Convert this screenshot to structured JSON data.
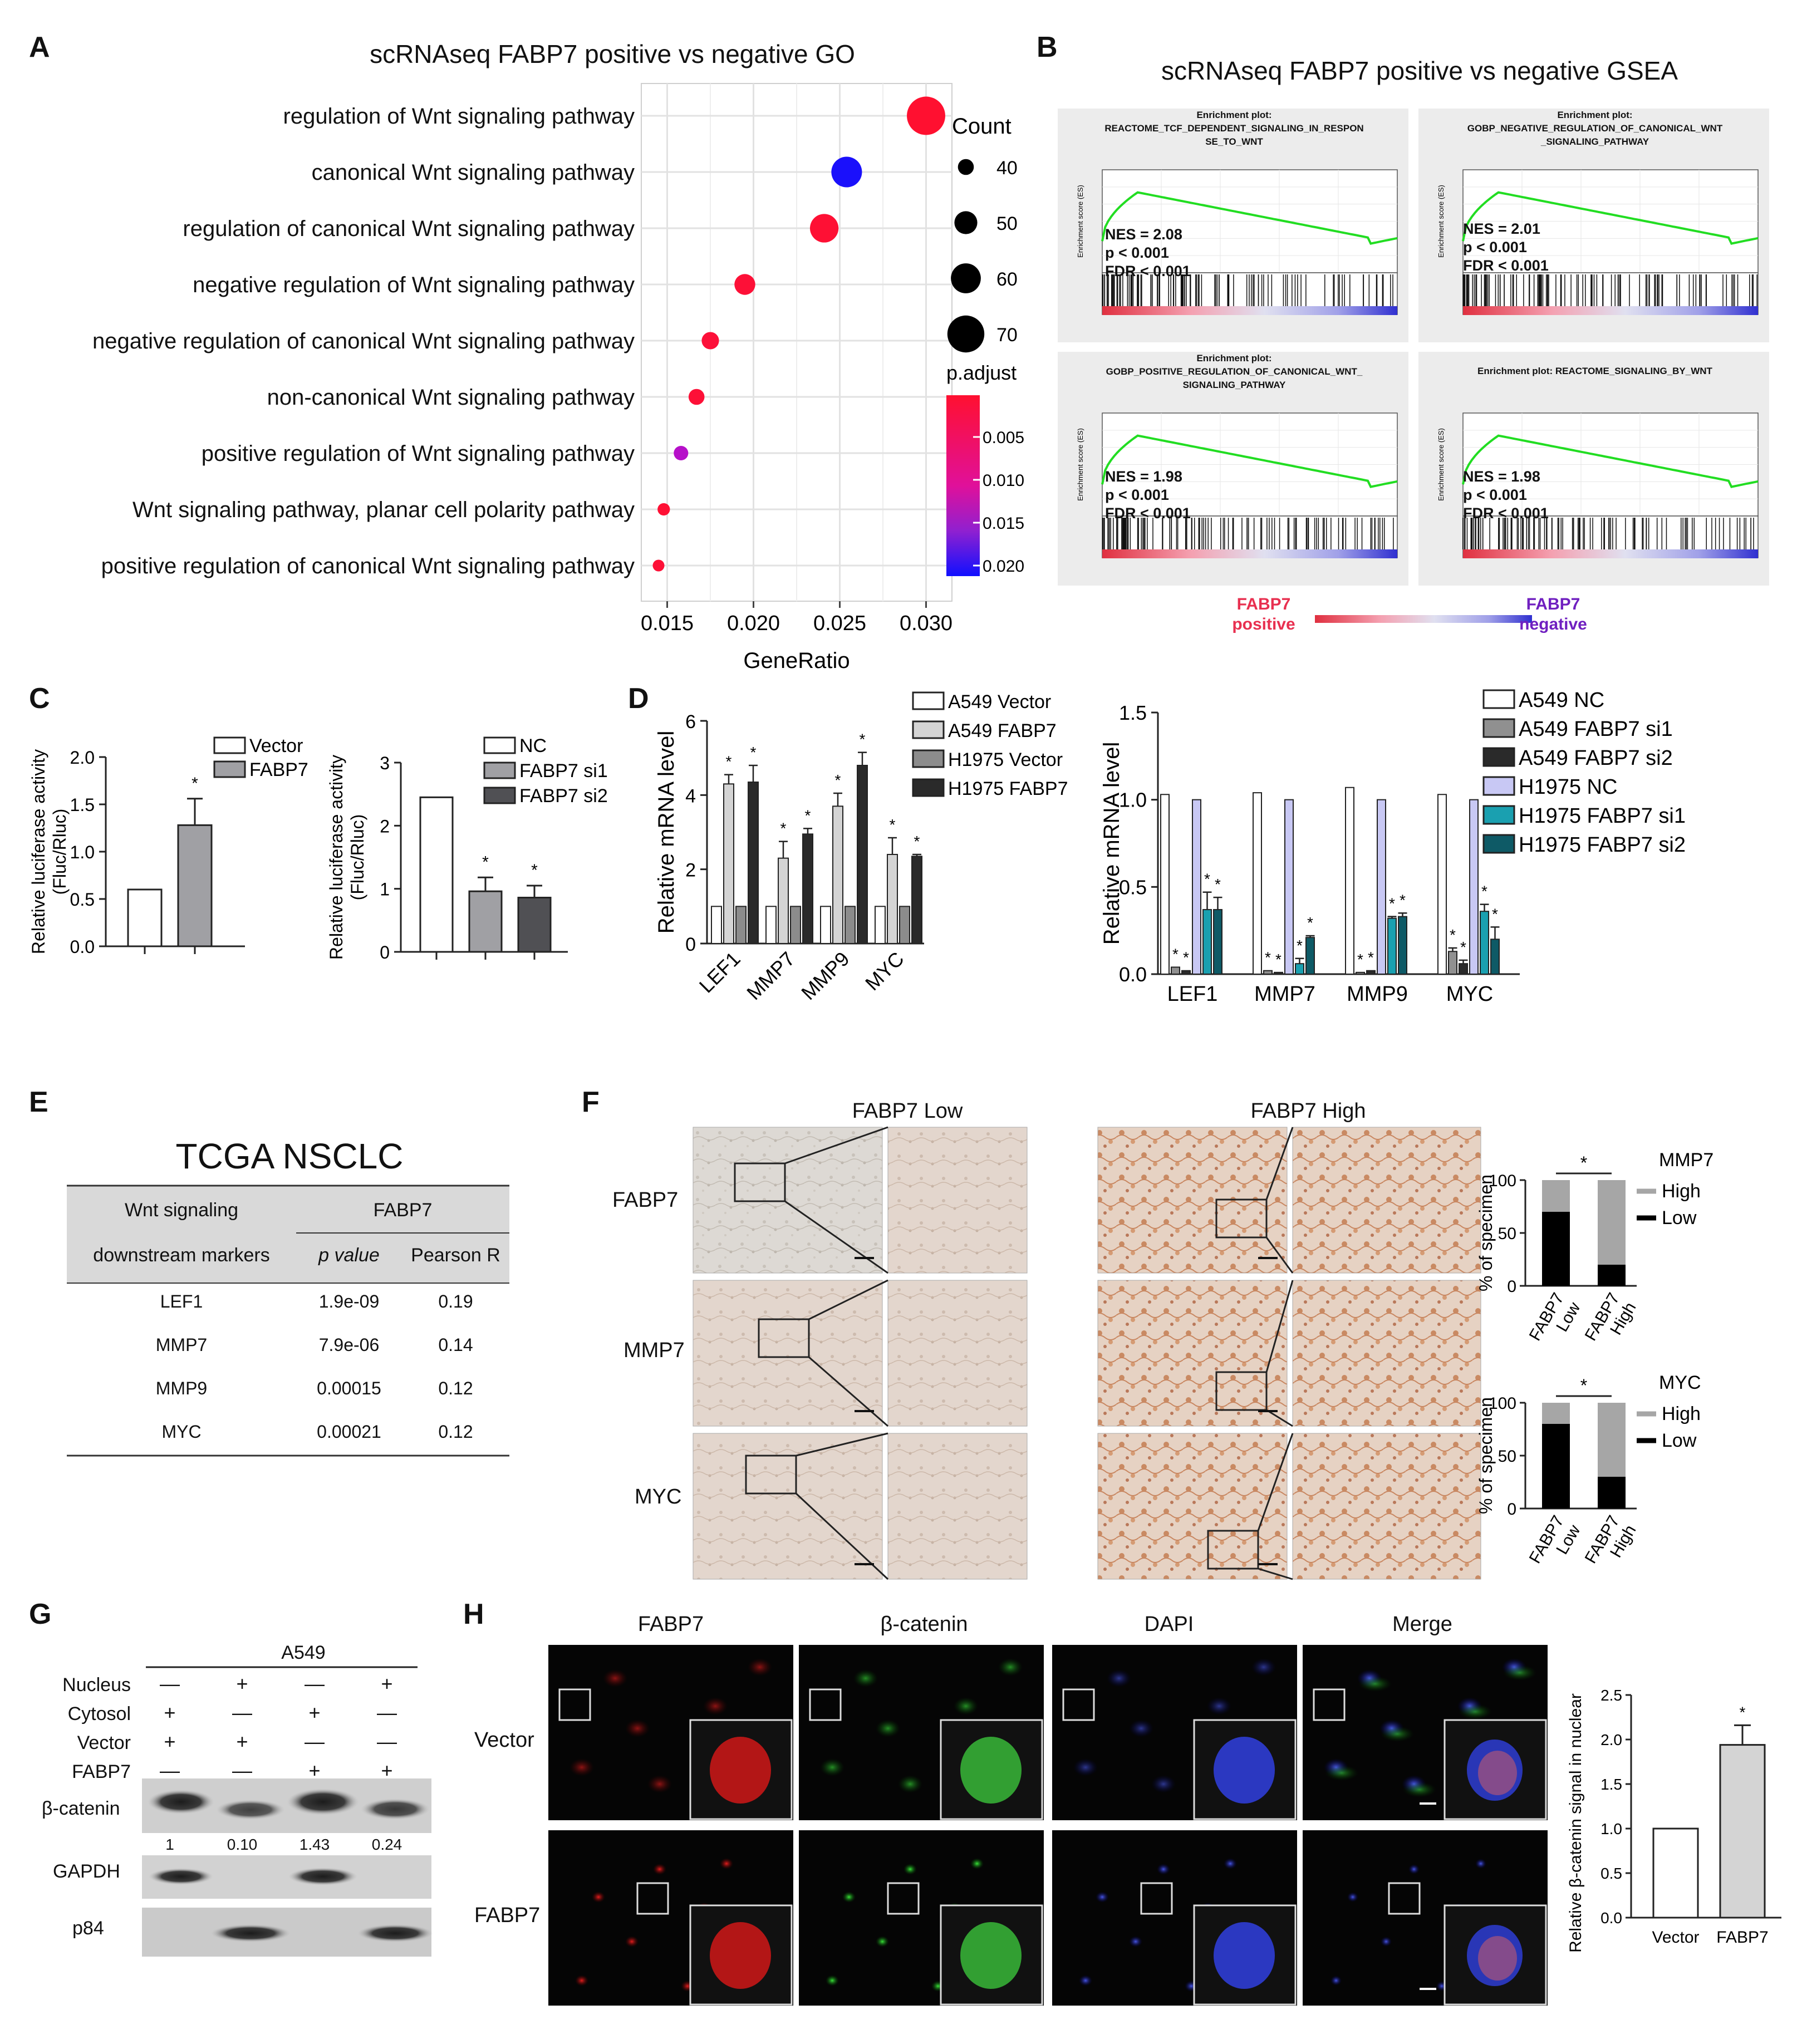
{
  "panels": {
    "A": "A",
    "B": "B",
    "C": "C",
    "D": "D",
    "E": "E",
    "F": "F",
    "G": "G",
    "H": "H"
  },
  "panel_a": {
    "title": "scRNAseq  FABP7 positive vs negative GO",
    "terms": [
      "regulation of Wnt signaling pathway",
      "canonical Wnt signaling pathway",
      "regulation of canonical Wnt signaling pathway",
      "negative regulation of Wnt signaling pathway",
      "negative regulation of canonical Wnt signaling pathway",
      "non-canonical Wnt signaling pathway",
      "positive regulation of Wnt signaling pathway",
      "Wnt signaling pathway, planar cell polarity pathway",
      "positive regulation of canonical Wnt signaling pathway"
    ],
    "count_title": "Count",
    "count_values": [
      "40",
      "50",
      "60",
      "70"
    ],
    "padj_title": "p.adjust",
    "padj_ticks": [
      "0.005",
      "0.010",
      "0.015",
      "0.020"
    ],
    "colors": {
      "high": "#ff1030",
      "mid": "#a020c0",
      "low": "#1010ff"
    }
  },
  "chart_data": [
    {
      "type": "scatter",
      "id": "A-GO-dotplot",
      "title": "scRNAseq  FABP7 positive vs negative GO",
      "xlabel": "GeneRatio",
      "xticks": [
        "0.015",
        "0.020",
        "0.025",
        "0.030"
      ],
      "xlim": [
        0.0135,
        0.0315
      ],
      "categories": [
        "regulation of Wnt signaling pathway",
        "canonical Wnt signaling pathway",
        "regulation of canonical Wnt signaling pathway",
        "negative regulation of Wnt signaling pathway",
        "negative regulation of canonical Wnt signaling pathway",
        "non-canonical Wnt signaling pathway",
        "positive regulation of Wnt signaling pathway",
        "Wnt signaling pathway, planar cell polarity pathway",
        "positive regulation of canonical Wnt signaling pathway"
      ],
      "gene_ratio": [
        0.03,
        0.0254,
        0.0241,
        0.0195,
        0.0175,
        0.0167,
        0.0158,
        0.0148,
        0.0145
      ],
      "count": [
        72,
        61,
        58,
        47,
        42,
        40,
        38,
        35,
        34
      ],
      "p_adjust": [
        0.0005,
        0.02,
        0.0008,
        0.001,
        0.0012,
        0.001,
        0.0125,
        0.0008,
        0.001
      ]
    },
    {
      "type": "bar",
      "id": "C-left",
      "ylabel": "Relative luciferase activity\n(Fluc/Rluc)",
      "ylim": [
        0,
        2.0
      ],
      "yticks": [
        "0.0",
        "0.5",
        "1.0",
        "1.5",
        "2.0"
      ],
      "categories": [
        "Vector",
        "FABP7"
      ],
      "values": [
        0.6,
        1.28
      ],
      "errors": [
        0,
        0.28
      ],
      "significance": [
        "",
        "*"
      ],
      "legend": [
        "Vector",
        "FABP7"
      ]
    },
    {
      "type": "bar",
      "id": "C-right",
      "ylabel": "Relative luciferase activity\n(Fluc/Rluc)",
      "ylim": [
        0,
        3
      ],
      "yticks": [
        "0",
        "1",
        "2",
        "3"
      ],
      "categories": [
        "NC",
        "FABP7 si1",
        "FABP7 si2"
      ],
      "values": [
        2.45,
        0.96,
        0.86
      ],
      "errors": [
        0,
        0.22,
        0.19
      ],
      "significance": [
        "",
        "*",
        "*"
      ],
      "legend": [
        "NC",
        "FABP7 si1",
        "FABP7 si2"
      ]
    },
    {
      "type": "bar",
      "id": "D-left",
      "ylabel": "Relative mRNA level",
      "ylim": [
        0,
        6
      ],
      "yticks": [
        "0",
        "2",
        "4",
        "6"
      ],
      "categories": [
        "LEF1",
        "MMP7",
        "MMP9",
        "MYC"
      ],
      "series": [
        {
          "name": "A549 Vector",
          "values": [
            1,
            1,
            1,
            1
          ],
          "errors": [
            0,
            0,
            0,
            0
          ]
        },
        {
          "name": "A549 FABP7",
          "values": [
            4.3,
            2.3,
            3.7,
            2.4
          ],
          "errors": [
            0.25,
            0.45,
            0.35,
            0.45
          ]
        },
        {
          "name": "H1975 Vector",
          "values": [
            1,
            1,
            1,
            1
          ],
          "errors": [
            0,
            0,
            0,
            0
          ]
        },
        {
          "name": "H1975 FABP7",
          "values": [
            4.35,
            2.95,
            4.8,
            2.35
          ],
          "errors": [
            0.45,
            0.15,
            0.35,
            0.05
          ]
        }
      ]
    },
    {
      "type": "bar",
      "id": "D-right",
      "ylabel": "Relative mRNA level",
      "ylim": [
        0,
        1.5
      ],
      "yticks": [
        "0.0",
        "0.5",
        "1.0",
        "1.5"
      ],
      "categories": [
        "LEF1",
        "MMP7",
        "MMP9",
        "MYC"
      ],
      "series": [
        {
          "name": "A549 NC",
          "values": [
            1.03,
            1.04,
            1.07,
            1.03
          ],
          "errors": [
            0,
            0,
            0,
            0
          ]
        },
        {
          "name": "A549 FABP7 si1",
          "values": [
            0.04,
            0.02,
            0.01,
            0.13
          ],
          "errors": [
            0,
            0,
            0,
            0.02
          ]
        },
        {
          "name": "A549 FABP7 si2",
          "values": [
            0.02,
            0.01,
            0.02,
            0.06
          ],
          "errors": [
            0,
            0,
            0,
            0.02
          ]
        },
        {
          "name": "H1975 NC",
          "values": [
            1.0,
            1.0,
            1.0,
            1.0
          ],
          "errors": [
            0,
            0,
            0,
            0
          ]
        },
        {
          "name": "H1975 FABP7 si1",
          "values": [
            0.37,
            0.06,
            0.32,
            0.36
          ],
          "errors": [
            0.1,
            0.03,
            0.01,
            0.04
          ]
        },
        {
          "name": "H1975 FABP7 si2",
          "values": [
            0.37,
            0.21,
            0.33,
            0.2
          ],
          "errors": [
            0.07,
            0.01,
            0.02,
            0.07
          ]
        }
      ]
    },
    {
      "type": "bar",
      "id": "F-MMP7",
      "ylabel": "% of specimen",
      "ylim": [
        0,
        100
      ],
      "yticks": [
        "0",
        "50",
        "100"
      ],
      "categories": [
        "FABP7 Low",
        "FABP7 High"
      ],
      "series": [
        {
          "name": "Low",
          "values": [
            70,
            20
          ]
        },
        {
          "name": "High",
          "values": [
            30,
            80
          ]
        }
      ],
      "legend_title": "MMP7"
    },
    {
      "type": "bar",
      "id": "F-MYC",
      "ylabel": "% of specimen",
      "ylim": [
        0,
        100
      ],
      "yticks": [
        "0",
        "50",
        "100"
      ],
      "categories": [
        "FABP7 Low",
        "FABP7 High"
      ],
      "series": [
        {
          "name": "Low",
          "values": [
            80,
            30
          ]
        },
        {
          "name": "High",
          "values": [
            20,
            70
          ]
        }
      ],
      "legend_title": "MYC"
    },
    {
      "type": "bar",
      "id": "H-right",
      "ylabel": "Relative β-catenin signal in nuclear",
      "ylim": [
        0,
        2.5
      ],
      "yticks": [
        "0.0",
        "0.5",
        "1.0",
        "1.5",
        "2.0",
        "2.5"
      ],
      "categories": [
        "Vector",
        "FABP7"
      ],
      "values": [
        1.0,
        1.94
      ],
      "errors": [
        0,
        0.22
      ],
      "significance": [
        "",
        "*"
      ]
    }
  ],
  "panel_b": {
    "title": "scRNAseq  FABP7 positive vs negative GSEA",
    "plots": [
      {
        "title": "Enrichment plot:\nREACTOME_TCF_DEPENDENT_SIGNALING_IN_RESPON\nSE_TO_WNT",
        "stats": "NES = 2.08\np < 0.001\nFDR < 0.001"
      },
      {
        "title": "Enrichment plot:\nGOBP_NEGATIVE_REGULATION_OF_CANONICAL_WNT\n_SIGNALING_PATHWAY",
        "stats": "NES = 2.01\np < 0.001\nFDR < 0.001"
      },
      {
        "title": "Enrichment plot:\nGOBP_POSITIVE_REGULATION_OF_CANONICAL_WNT_\nSIGNALING_PATHWAY",
        "stats": "NES = 1.98\np < 0.001\nFDR < 0.001"
      },
      {
        "title": "Enrichment plot: REACTOME_SIGNALING_BY_WNT",
        "stats": "NES = 1.98\np < 0.001\nFDR < 0.001"
      }
    ],
    "ylabel": "Enrichment score (ES)",
    "pos_label": "FABP7\npositive",
    "neg_label": "FABP7\nnegative"
  },
  "panel_c": {
    "left_legend": [
      "Vector",
      "FABP7"
    ],
    "right_legend": [
      "NC",
      "FABP7 si1",
      "FABP7 si2"
    ],
    "ylabel1": "Relative luciferase activity",
    "ylabel2": "(Fluc/Rluc)"
  },
  "panel_d": {
    "left_legend": [
      "A549 Vector",
      "A549 FABP7",
      "H1975 Vector",
      "H1975 FABP7"
    ],
    "right_legend": [
      "A549 NC",
      "A549 FABP7 si1",
      "A549 FABP7 si2",
      "H1975 NC",
      "H1975 FABP7 si1",
      "H1975 FABP7 si2"
    ]
  },
  "panel_e": {
    "title": "TCGA NSCLC",
    "head1": "Wnt signaling",
    "head2": "downstream markers",
    "group": "FABP7",
    "col_p": "p value",
    "col_r": "Pearson  R",
    "rows": [
      {
        "gene": "LEF1",
        "p": "1.9e-09",
        "r": "0.19"
      },
      {
        "gene": "MMP7",
        "p": "7.9e-06",
        "r": "0.14"
      },
      {
        "gene": "MMP9",
        "p": "0.00015",
        "r": "0.12"
      },
      {
        "gene": "MYC",
        "p": "0.00021",
        "r": "0.12"
      }
    ]
  },
  "panel_f": {
    "col_low": "FABP7 Low",
    "col_high": "FABP7 High",
    "rows": [
      "FABP7",
      "MMP7",
      "MYC"
    ],
    "legend_high": "High",
    "legend_low": "Low",
    "sig": "*"
  },
  "panel_g": {
    "cell": "A549",
    "cond_labels": [
      "Nucleus",
      "Cytosol",
      "Vector",
      "FABP7"
    ],
    "cond_signs": [
      [
        "—",
        "+",
        "—",
        "+"
      ],
      [
        "+",
        "—",
        "+",
        "—"
      ],
      [
        "+",
        "+",
        "—",
        "—"
      ],
      [
        "—",
        "—",
        "+",
        "+"
      ]
    ],
    "blots": [
      "β-catenin",
      "GAPDH",
      "p84"
    ],
    "quant": [
      "1",
      "0.10",
      "1.43",
      "0.24"
    ]
  },
  "panel_h": {
    "cols": [
      "FABP7",
      "β-catenin",
      "DAPI",
      "Merge"
    ],
    "rows": [
      "Vector",
      "FABP7"
    ]
  }
}
